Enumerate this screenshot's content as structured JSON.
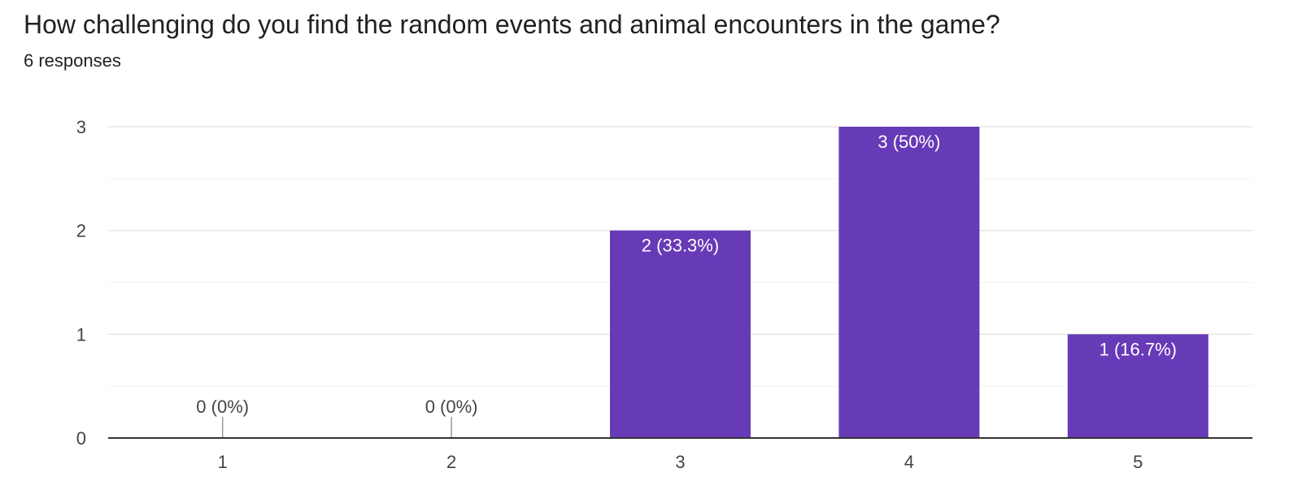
{
  "question": {
    "title": "How challenging do you find the random events and animal encounters in the game?",
    "responses": "6 responses"
  },
  "colors": {
    "bar": "#673ab7",
    "label_inside": "#ffffff",
    "label_outside": "#444444",
    "gridline": "#e6e6e6",
    "minor_gridline": "#f2f2f2",
    "baseline": "#333333"
  },
  "chart_data": {
    "type": "bar",
    "categories": [
      "1",
      "2",
      "3",
      "4",
      "5"
    ],
    "values": [
      0,
      0,
      2,
      3,
      1
    ],
    "labels": [
      "0 (0%)",
      "0 (0%)",
      "2 (33.3%)",
      "3 (50%)",
      "1 (16.7%)"
    ],
    "y_ticks": [
      0,
      1,
      2,
      3
    ],
    "ylim": [
      0,
      3
    ],
    "grid": true,
    "legend": "none"
  }
}
